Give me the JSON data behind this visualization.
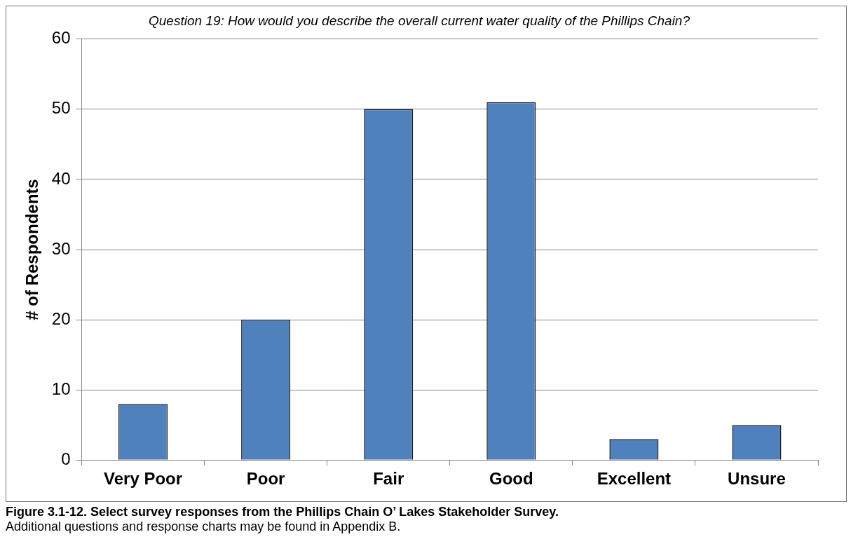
{
  "chart_data": {
    "type": "bar",
    "title": "Question 19: How would you describe the overall current water quality of the Phillips Chain?",
    "ylabel": "# of Respondents",
    "categories": [
      "Very Poor",
      "Poor",
      "Fair",
      "Good",
      "Excellent",
      "Unsure"
    ],
    "values": [
      8,
      20,
      50,
      51,
      3,
      5
    ],
    "color": "#4f81bd",
    "ylim": [
      0,
      60
    ],
    "yticks": [
      0,
      10,
      20,
      30,
      40,
      50,
      60
    ],
    "grid": "y",
    "legend": false,
    "annotations": [
      "Figure 3.1-12.  Select survey responses from the Phillips Chain O’ Lakes Stakeholder Survey.",
      "Additional questions and response charts may be found in Appendix B."
    ]
  }
}
